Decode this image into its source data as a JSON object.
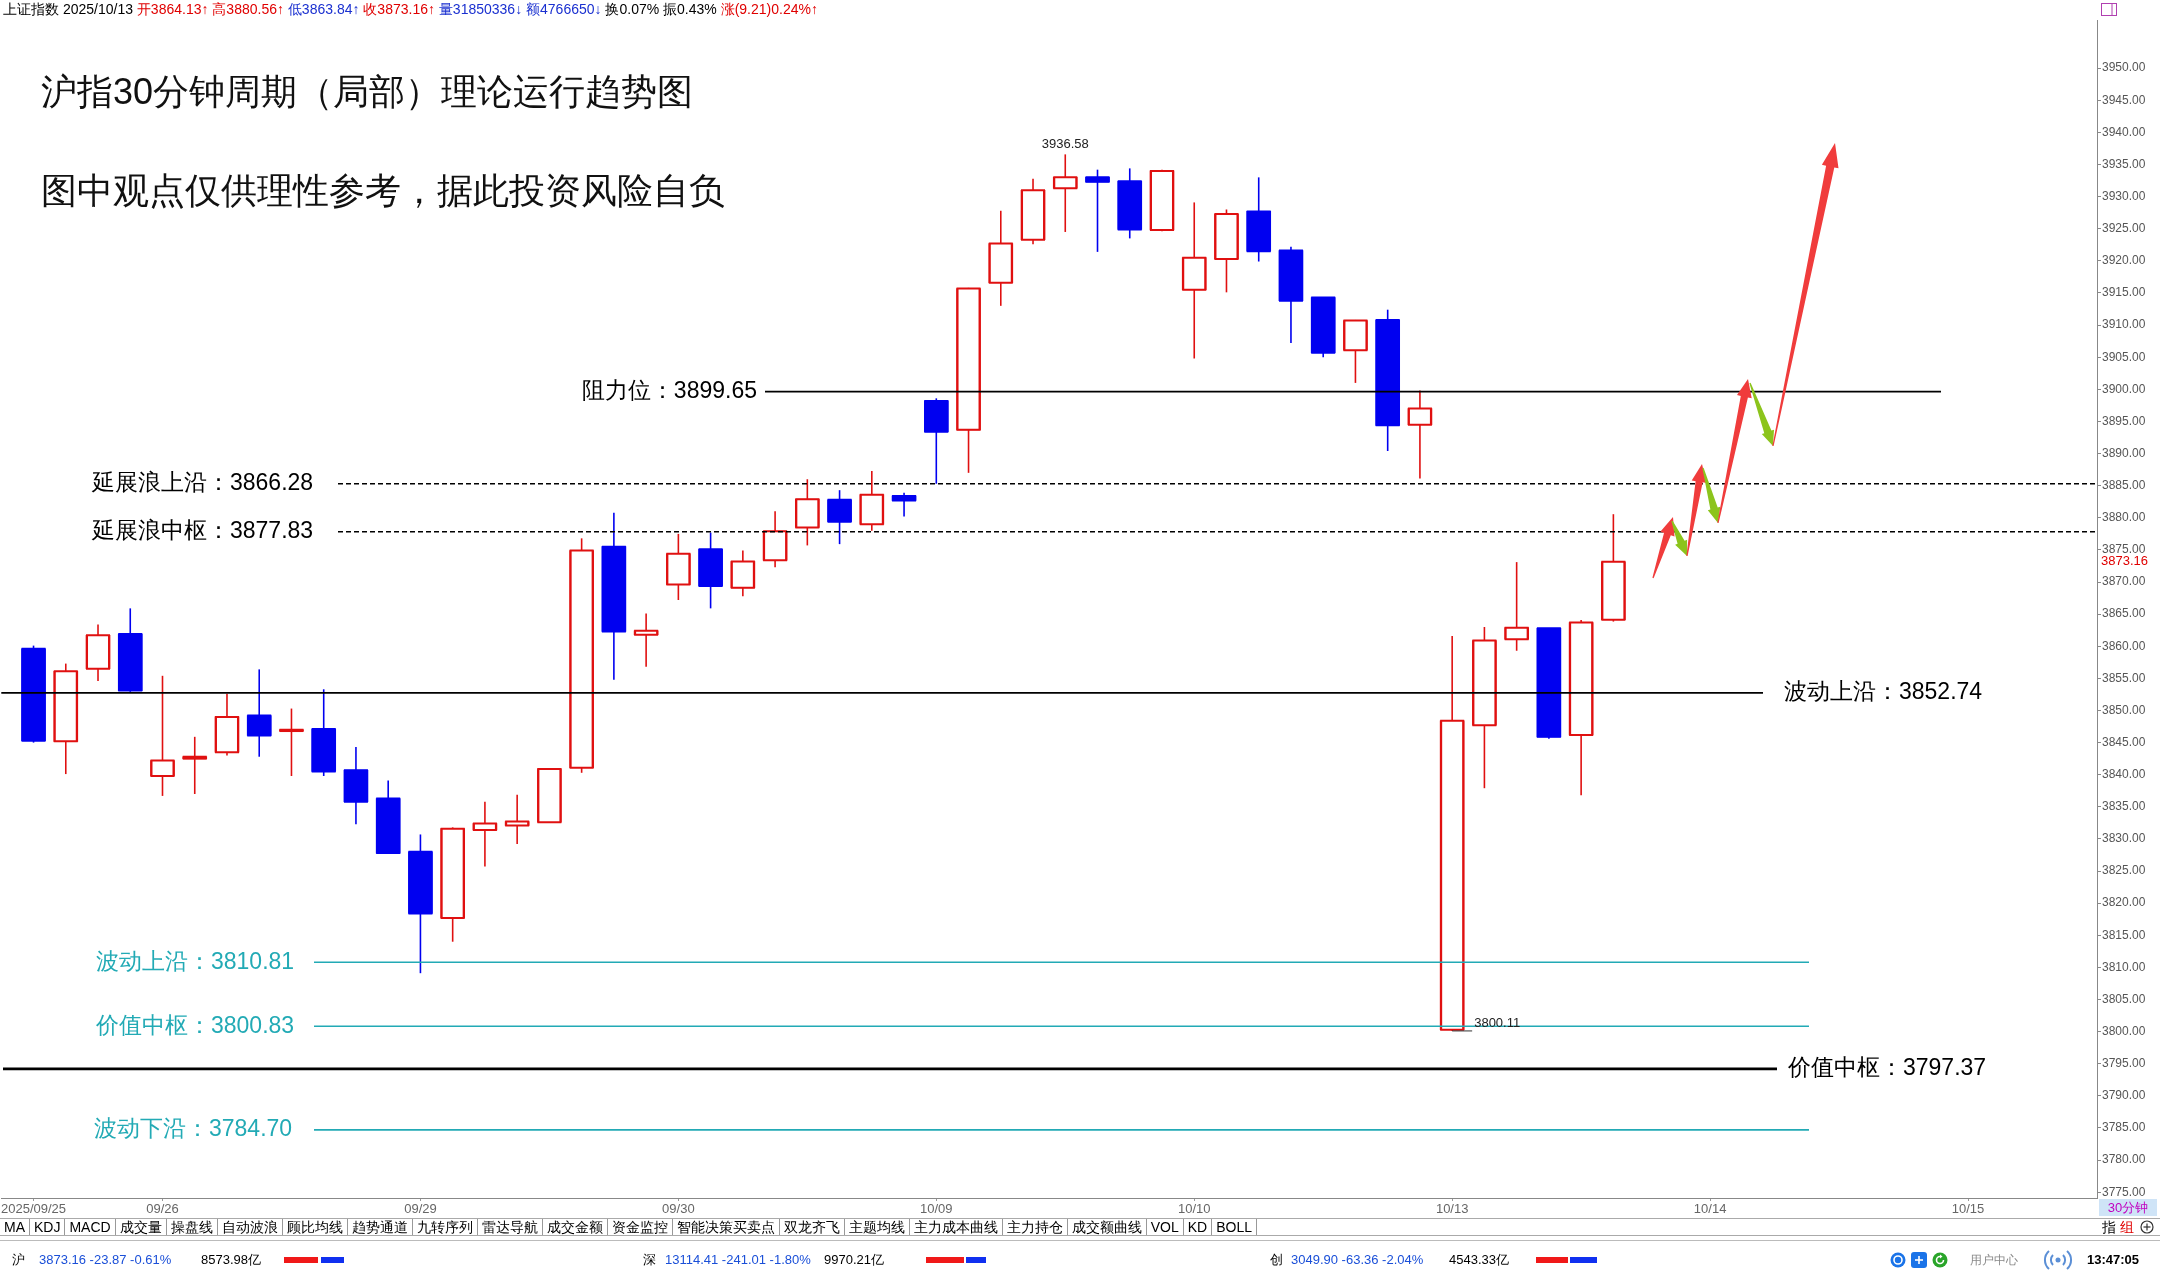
{
  "chart_data": {
    "type": "candlestick",
    "title": "沪指30分钟周期（局部）理论运行趋势图",
    "subtitle": "图中观点仅供理性参考，据此投资风险自负",
    "categories": [
      "2025/09/25",
      null,
      null,
      null,
      "09/26",
      null,
      null,
      null,
      null,
      null,
      null,
      null,
      "09/29",
      null,
      null,
      null,
      null,
      null,
      null,
      null,
      "09/30",
      null,
      null,
      null,
      null,
      null,
      null,
      null,
      "10/09",
      null,
      null,
      null,
      null,
      null,
      null,
      null,
      "10/10",
      null,
      null,
      null,
      null,
      null,
      null,
      null,
      "10/13",
      null,
      null,
      null,
      null,
      null,
      null,
      null,
      "10/14",
      null,
      null,
      null,
      null,
      null,
      null,
      null,
      "10/15",
      null,
      null,
      null
    ],
    "ohlc": [
      [
        3859.6,
        3860.1,
        3845.0,
        3845.3
      ],
      [
        3845.2,
        3857.3,
        3840.1,
        3856.1
      ],
      [
        3856.5,
        3863.4,
        3854.6,
        3861.7
      ],
      [
        3861.9,
        3865.9,
        3852.9,
        3853.1
      ],
      [
        3839.8,
        3855.4,
        3836.7,
        3842.2
      ],
      [
        3842.5,
        3845.9,
        3837.0,
        3842.8
      ],
      [
        3843.5,
        3852.6,
        3843.0,
        3849.0
      ],
      [
        3849.2,
        3856.4,
        3842.8,
        3846.1
      ],
      [
        3846.8,
        3850.3,
        3839.8,
        3847.0
      ],
      [
        3847.1,
        3853.3,
        3839.8,
        3840.5
      ],
      [
        3840.7,
        3844.3,
        3832.3,
        3835.8
      ],
      [
        3836.3,
        3839.1,
        3827.7,
        3827.8
      ],
      [
        3828.0,
        3830.7,
        3809.1,
        3818.4
      ],
      [
        3817.7,
        3831.8,
        3814.0,
        3831.6
      ],
      [
        3831.4,
        3835.8,
        3825.7,
        3832.4
      ],
      [
        3832.1,
        3836.9,
        3829.2,
        3832.7
      ],
      [
        3832.6,
        3840.9,
        3832.5,
        3840.9
      ],
      [
        3841.1,
        3876.8,
        3840.3,
        3874.9
      ],
      [
        3875.5,
        3880.8,
        3854.8,
        3862.3
      ],
      [
        3861.8,
        3865.1,
        3856.8,
        3862.4
      ],
      [
        3869.6,
        3877.5,
        3867.2,
        3874.4
      ],
      [
        3875.1,
        3877.7,
        3865.9,
        3869.4
      ],
      [
        3869.1,
        3874.9,
        3867.8,
        3873.2
      ],
      [
        3873.4,
        3881.0,
        3872.3,
        3877.9
      ],
      [
        3878.5,
        3886.0,
        3875.7,
        3882.9
      ],
      [
        3882.8,
        3884.3,
        3875.9,
        3879.4
      ],
      [
        3879.0,
        3887.3,
        3878.0,
        3883.6
      ],
      [
        3883.4,
        3883.9,
        3880.2,
        3882.7
      ],
      [
        3898.2,
        3898.6,
        3885.3,
        3893.4
      ],
      [
        3893.7,
        3915.8,
        3887.0,
        3915.7
      ],
      [
        3916.6,
        3927.8,
        3913.0,
        3922.7
      ],
      [
        3923.3,
        3932.8,
        3922.6,
        3931.0
      ],
      [
        3931.3,
        3936.58,
        3924.5,
        3933.0
      ],
      [
        3933.0,
        3934.2,
        3921.4,
        3932.3
      ],
      [
        3932.4,
        3934.4,
        3923.5,
        3924.9
      ],
      [
        3924.8,
        3934.2,
        3924.6,
        3934.0
      ],
      [
        3915.5,
        3929.1,
        3904.8,
        3920.5
      ],
      [
        3920.3,
        3928.0,
        3915.1,
        3927.3
      ],
      [
        3927.7,
        3933.0,
        3919.9,
        3921.5
      ],
      [
        3921.6,
        3922.2,
        3907.2,
        3913.8
      ],
      [
        3914.3,
        3914.3,
        3905.0,
        3905.7
      ],
      [
        3906.1,
        3910.8,
        3901.0,
        3910.7
      ],
      [
        3910.8,
        3912.4,
        3890.4,
        3894.4
      ],
      [
        3894.5,
        3899.8,
        3886.1,
        3897.0
      ],
      [
        3800.3,
        3861.6,
        3800.11,
        3848.4
      ],
      [
        3847.7,
        3863.0,
        3837.9,
        3860.9
      ],
      [
        3861.1,
        3873.1,
        3859.3,
        3862.9
      ],
      [
        3862.8,
        3862.8,
        3845.6,
        3845.9
      ],
      [
        3846.2,
        3864.1,
        3836.8,
        3863.7
      ],
      [
        3864.13,
        3880.56,
        3863.84,
        3873.16
      ],
      null,
      null,
      null,
      null,
      null,
      null,
      null,
      null,
      null,
      null,
      null,
      null,
      null,
      null
    ],
    "colors": [
      "#0000f0",
      "#e01010",
      "#e01010",
      "#0000f0",
      "#e01010",
      "#e01010",
      "#e01010",
      "#0000f0",
      "#e01010",
      "#0000f0",
      "#0000f0",
      "#0000f0",
      "#0000f0",
      "#e01010",
      "#e01010",
      "#e01010",
      "#e01010",
      "#e01010",
      "#0000f0",
      "#e01010",
      "#e01010",
      "#0000f0",
      "#e01010",
      "#e01010",
      "#e01010",
      "#0000f0",
      "#e01010",
      "#0000f0",
      "#0000f0",
      "#e01010",
      "#e01010",
      "#e01010",
      "#e01010",
      "#0000f0",
      "#0000f0",
      "#e01010",
      "#e01010",
      "#e01010",
      "#0000f0",
      "#0000f0",
      "#0000f0",
      "#e01010",
      "#0000f0",
      "#e01010",
      "#e01010",
      "#e01010",
      "#e01010",
      "#0000f0",
      "#e01010",
      "#e01010",
      null,
      null,
      null,
      null,
      null,
      null,
      null,
      null,
      null,
      null,
      null,
      null,
      null,
      null
    ],
    "ylim": [
      3774.1,
      3957.5
    ],
    "yticks": [
      {
        "value": 3775,
        "label": "3775.00"
      },
      {
        "value": 3780,
        "label": "3780.00"
      },
      {
        "value": 3785,
        "label": "3785.00"
      },
      {
        "value": 3790,
        "label": "3790.00"
      },
      {
        "value": 3795,
        "label": "3795.00"
      },
      {
        "value": 3800,
        "label": "3800.00"
      },
      {
        "value": 3805,
        "label": "3805.00"
      },
      {
        "value": 3810,
        "label": "3810.00"
      },
      {
        "value": 3815,
        "label": "3815.00"
      },
      {
        "value": 3820,
        "label": "3820.00"
      },
      {
        "value": 3825,
        "label": "3825.00"
      },
      {
        "value": 3830,
        "label": "3830.00"
      },
      {
        "value": 3835,
        "label": "3835.00"
      },
      {
        "value": 3840,
        "label": "3840.00"
      },
      {
        "value": 3845,
        "label": "3845.00"
      },
      {
        "value": 3850,
        "label": "3850.00"
      },
      {
        "value": 3855,
        "label": "3855.00"
      },
      {
        "value": 3860,
        "label": "3860.00"
      },
      {
        "value": 3865,
        "label": "3865.00"
      },
      {
        "value": 3870,
        "label": "3870.00"
      },
      {
        "value": 3875,
        "label": "3875.00"
      },
      {
        "value": 3880,
        "label": "3880.00"
      },
      {
        "value": 3885,
        "label": "3885.00"
      },
      {
        "value": 3890,
        "label": "3890.00"
      },
      {
        "value": 3895,
        "label": "3895.00"
      },
      {
        "value": 3900,
        "label": "3900.00"
      },
      {
        "value": 3905,
        "label": "3905.00"
      },
      {
        "value": 3910,
        "label": "3910.00"
      },
      {
        "value": 3915,
        "label": "3915.00"
      },
      {
        "value": 3920,
        "label": "3920.00"
      },
      {
        "value": 3925,
        "label": "3925.00"
      },
      {
        "value": 3930,
        "label": "3930.00"
      },
      {
        "value": 3935,
        "label": "3935.00"
      },
      {
        "value": 3940,
        "label": "3940.00"
      },
      {
        "value": 3945,
        "label": "3945.00"
      },
      {
        "value": 3950,
        "label": "3950.00"
      }
    ],
    "ref_lines": [
      {
        "axis": "y",
        "value": 3899.65,
        "label": "阻力位：3899.65",
        "color": "#000000",
        "line_style": "solid"
      },
      {
        "axis": "y",
        "value": 3885.3,
        "label": "延展浪上沿：3866.28",
        "color": "#000000",
        "line_style": "dashed"
      },
      {
        "axis": "y",
        "value": 3877.83,
        "label": "延展浪中枢：3877.83",
        "color": "#000000",
        "line_style": "dashed"
      },
      {
        "axis": "y",
        "value": 3852.74,
        "label": "波动上沿：3852.74",
        "color": "#000000",
        "line_style": "solid"
      },
      {
        "axis": "y",
        "value": 3810.81,
        "label": "波动上沿：3810.81",
        "color": "#22aab5",
        "line_style": "solid"
      },
      {
        "axis": "y",
        "value": 3800.83,
        "label": "价值中枢：3800.83",
        "color": "#22aab5",
        "line_style": "solid"
      },
      {
        "axis": "y",
        "value": 3794.2,
        "label": "价值中枢：3797.37",
        "color": "#000000",
        "line_style": "solid"
      },
      {
        "axis": "y",
        "value": 3784.7,
        "label": "波动下沿：3784.70",
        "color": "#22aab5",
        "line_style": "solid"
      }
    ],
    "annotations": [
      "上证指数 2025/10/13 开3864.13↑ 高3880.56↑ 低3863.84↑ 收3873.16↑ 量31850336↓ 额4766650↓ 换0.07% 振0.43% 涨(9.21)0.24%↑",
      {
        "text": "3936.58",
        "y": 3936.58
      },
      {
        "text": "3800.11",
        "y": 3800.11
      },
      "3873.16",
      "30分钟",
      "MA",
      "KDJ",
      "MACD",
      "成交量",
      "操盘线",
      "自动波浪",
      "顾比均线",
      "趋势通道",
      "九转序列",
      "雷达导航",
      "成交金额",
      "资金监控",
      "智能决策买卖点",
      "双龙齐飞",
      "主题均线",
      "主力成本曲线",
      "主力持仓",
      "成交额曲线",
      "VOL",
      "KD",
      "BOLL",
      "指",
      "组",
      "沪",
      "3873.16 -23.87 -0.61%",
      "8573.98亿",
      "深",
      "13114.41 -241.01 -1.80%",
      "9970.21亿",
      "创",
      "3049.90 -63.36 -2.04%",
      "4543.33亿",
      "用户中心",
      "13:47:05"
    ]
  }
}
